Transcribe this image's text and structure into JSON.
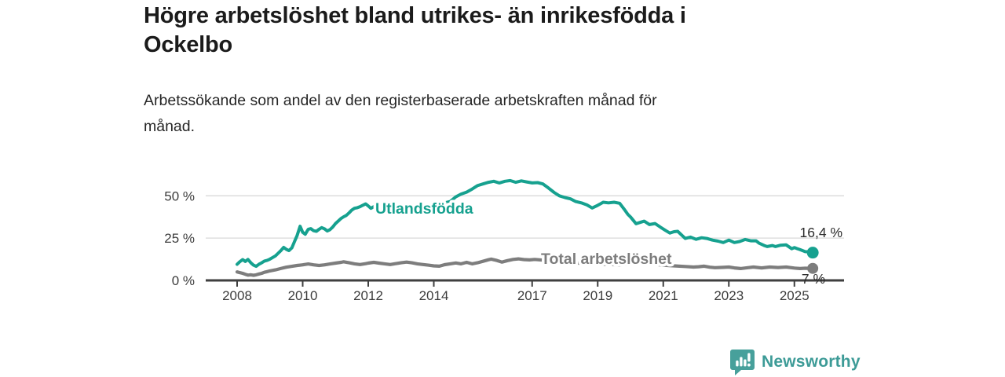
{
  "header": {
    "title_lines": [
      "Högre arbetslöshet bland utrikes- än inrikesfödda i",
      "Ockelbo"
    ],
    "subtitle_lines": [
      "Arbetssökande som andel av den registerbaserade arbetskraften månad för",
      "månad."
    ]
  },
  "chart_data": {
    "type": "line",
    "title": "Högre arbetslöshet bland utrikes- än inrikesfödda i Ockelbo",
    "subtitle": "Arbetssökande som andel av den registerbaserade arbetskraften månad för månad.",
    "unit": "%",
    "grid": true,
    "x_ticks": [
      2008,
      2010,
      2012,
      2014,
      2017,
      2019,
      2021,
      2023,
      2025
    ],
    "y_ticks": [
      {
        "value": 0,
        "label": "0 %"
      },
      {
        "value": 25,
        "label": "25 %"
      },
      {
        "value": 50,
        "label": "50 %"
      }
    ],
    "x_range": [
      2008,
      2025.6
    ],
    "y_range": [
      0,
      62
    ],
    "axis_color": "#3f3f3f",
    "grid_color": "#d9d9d9",
    "series": [
      {
        "name": "Utlandsfödda",
        "color": "#16a18f",
        "end_label": "16,4 %",
        "end_value": 16.4,
        "points": [
          [
            2008.0,
            9.5
          ],
          [
            2008.08,
            11
          ],
          [
            2008.17,
            12.3
          ],
          [
            2008.25,
            11.2
          ],
          [
            2008.33,
            12.4
          ],
          [
            2008.42,
            10.4
          ],
          [
            2008.5,
            9
          ],
          [
            2008.58,
            8.3
          ],
          [
            2008.67,
            9.6
          ],
          [
            2008.75,
            10.4
          ],
          [
            2008.83,
            11.4
          ],
          [
            2008.92,
            11.9
          ],
          [
            2009.0,
            12.6
          ],
          [
            2009.17,
            14.5
          ],
          [
            2009.25,
            16
          ],
          [
            2009.33,
            17.5
          ],
          [
            2009.42,
            19.5
          ],
          [
            2009.5,
            18.4
          ],
          [
            2009.58,
            17.6
          ],
          [
            2009.67,
            19.2
          ],
          [
            2009.75,
            23
          ],
          [
            2009.83,
            26.5
          ],
          [
            2009.92,
            32
          ],
          [
            2010.0,
            28.4
          ],
          [
            2010.08,
            27.3
          ],
          [
            2010.17,
            30.2
          ],
          [
            2010.25,
            30.6
          ],
          [
            2010.33,
            29.4
          ],
          [
            2010.42,
            29
          ],
          [
            2010.5,
            30.2
          ],
          [
            2010.58,
            31.2
          ],
          [
            2010.67,
            30.4
          ],
          [
            2010.75,
            29.2
          ],
          [
            2010.83,
            30
          ],
          [
            2010.92,
            31.6
          ],
          [
            2011.0,
            33.6
          ],
          [
            2011.08,
            35
          ],
          [
            2011.17,
            36.6
          ],
          [
            2011.25,
            37.6
          ],
          [
            2011.33,
            38.4
          ],
          [
            2011.42,
            40
          ],
          [
            2011.5,
            41.6
          ],
          [
            2011.58,
            42.6
          ],
          [
            2011.67,
            43
          ],
          [
            2011.75,
            43.6
          ],
          [
            2011.83,
            44.4
          ],
          [
            2011.92,
            45.2
          ],
          [
            2012.0,
            44
          ],
          [
            2012.08,
            42.6
          ],
          [
            2012.17,
            43.6
          ],
          [
            2012.33,
            44.2
          ],
          [
            2012.5,
            43.6
          ],
          [
            2012.75,
            44
          ],
          [
            2013.0,
            43.5
          ],
          [
            2013.25,
            44
          ],
          [
            2013.5,
            44.4
          ],
          [
            2013.75,
            44
          ],
          [
            2014.0,
            44.6
          ],
          [
            2014.25,
            45.4
          ],
          [
            2014.5,
            46.6
          ],
          [
            2014.67,
            49.4
          ],
          [
            2014.83,
            51
          ],
          [
            2015.0,
            52.2
          ],
          [
            2015.17,
            54
          ],
          [
            2015.33,
            56
          ],
          [
            2015.5,
            57
          ],
          [
            2015.67,
            58
          ],
          [
            2015.83,
            58.6
          ],
          [
            2016.0,
            57.6
          ],
          [
            2016.17,
            58.6
          ],
          [
            2016.33,
            59
          ],
          [
            2016.5,
            58
          ],
          [
            2016.67,
            58.8
          ],
          [
            2016.83,
            58.2
          ],
          [
            2017.0,
            57.6
          ],
          [
            2017.17,
            57.8
          ],
          [
            2017.33,
            57
          ],
          [
            2017.5,
            54.6
          ],
          [
            2017.67,
            52
          ],
          [
            2017.83,
            50
          ],
          [
            2018.0,
            49
          ],
          [
            2018.17,
            48.2
          ],
          [
            2018.33,
            46.6
          ],
          [
            2018.5,
            45.8
          ],
          [
            2018.67,
            44.6
          ],
          [
            2018.83,
            42.8
          ],
          [
            2019.0,
            44.4
          ],
          [
            2019.17,
            46.2
          ],
          [
            2019.33,
            45.8
          ],
          [
            2019.5,
            46.2
          ],
          [
            2019.67,
            45.6
          ],
          [
            2019.83,
            41.5
          ],
          [
            2019.92,
            39
          ],
          [
            2020.0,
            37.5
          ],
          [
            2020.17,
            33.5
          ],
          [
            2020.33,
            34.5
          ],
          [
            2020.42,
            35
          ],
          [
            2020.58,
            33
          ],
          [
            2020.75,
            33.6
          ],
          [
            2020.92,
            31.4
          ],
          [
            2021.08,
            29.4
          ],
          [
            2021.2,
            28
          ],
          [
            2021.33,
            28.8
          ],
          [
            2021.44,
            29
          ],
          [
            2021.58,
            26.4
          ],
          [
            2021.67,
            24.8
          ],
          [
            2021.83,
            25.6
          ],
          [
            2022.0,
            24.3
          ],
          [
            2022.17,
            25.2
          ],
          [
            2022.33,
            24.8
          ],
          [
            2022.5,
            23.8
          ],
          [
            2022.67,
            23.2
          ],
          [
            2022.83,
            22.4
          ],
          [
            2023.0,
            23.8
          ],
          [
            2023.17,
            22.4
          ],
          [
            2023.33,
            23
          ],
          [
            2023.5,
            24.2
          ],
          [
            2023.67,
            23.4
          ],
          [
            2023.83,
            23.4
          ],
          [
            2023.92,
            22
          ],
          [
            2024.08,
            20.6
          ],
          [
            2024.17,
            20
          ],
          [
            2024.33,
            20.6
          ],
          [
            2024.42,
            20
          ],
          [
            2024.58,
            20.8
          ],
          [
            2024.75,
            21
          ],
          [
            2024.92,
            18.7
          ],
          [
            2025.0,
            19.4
          ],
          [
            2025.08,
            18.8
          ],
          [
            2025.17,
            18.2
          ],
          [
            2025.33,
            17
          ],
          [
            2025.42,
            16.9
          ],
          [
            2025.56,
            16.4
          ]
        ]
      },
      {
        "name": "Total arbetslöshet",
        "color": "#7d7d7d",
        "end_label": "7 %",
        "end_value": 7,
        "points": [
          [
            2008.0,
            5
          ],
          [
            2008.08,
            4.6
          ],
          [
            2008.17,
            4.2
          ],
          [
            2008.25,
            3.6
          ],
          [
            2008.33,
            3.1
          ],
          [
            2008.42,
            3.3
          ],
          [
            2008.5,
            3
          ],
          [
            2008.58,
            3.3
          ],
          [
            2008.67,
            3.8
          ],
          [
            2008.75,
            4.2
          ],
          [
            2008.83,
            4.8
          ],
          [
            2008.92,
            5.2
          ],
          [
            2009.0,
            5.6
          ],
          [
            2009.17,
            6.2
          ],
          [
            2009.33,
            7
          ],
          [
            2009.5,
            7.8
          ],
          [
            2009.67,
            8.3
          ],
          [
            2009.83,
            8.8
          ],
          [
            2010.0,
            9.2
          ],
          [
            2010.17,
            9.7
          ],
          [
            2010.33,
            9.2
          ],
          [
            2010.5,
            8.8
          ],
          [
            2010.67,
            9.2
          ],
          [
            2010.83,
            9.7
          ],
          [
            2011.0,
            10.2
          ],
          [
            2011.17,
            10.7
          ],
          [
            2011.25,
            11
          ],
          [
            2011.42,
            10.4
          ],
          [
            2011.58,
            9.8
          ],
          [
            2011.75,
            9.4
          ],
          [
            2011.92,
            9.9
          ],
          [
            2012.0,
            10.2
          ],
          [
            2012.17,
            10.7
          ],
          [
            2012.33,
            10.2
          ],
          [
            2012.5,
            9.8
          ],
          [
            2012.67,
            9.4
          ],
          [
            2012.83,
            9.9
          ],
          [
            2013.0,
            10.4
          ],
          [
            2013.17,
            10.8
          ],
          [
            2013.33,
            10.4
          ],
          [
            2013.5,
            9.8
          ],
          [
            2013.67,
            9.4
          ],
          [
            2013.83,
            9
          ],
          [
            2014.0,
            8.6
          ],
          [
            2014.17,
            8.4
          ],
          [
            2014.33,
            9.3
          ],
          [
            2014.5,
            9.8
          ],
          [
            2014.67,
            10.3
          ],
          [
            2014.83,
            9.8
          ],
          [
            2015.0,
            10.7
          ],
          [
            2015.17,
            9.8
          ],
          [
            2015.33,
            10.4
          ],
          [
            2015.5,
            11.3
          ],
          [
            2015.67,
            12.2
          ],
          [
            2015.75,
            12.6
          ],
          [
            2015.92,
            11.8
          ],
          [
            2016.08,
            10.8
          ],
          [
            2016.25,
            11.7
          ],
          [
            2016.42,
            12.4
          ],
          [
            2016.58,
            12.7
          ],
          [
            2016.75,
            12.3
          ],
          [
            2016.92,
            12.1
          ],
          [
            2017.08,
            12.4
          ],
          [
            2017.33,
            12
          ],
          [
            2017.67,
            11.4
          ],
          [
            2018.0,
            10.8
          ],
          [
            2018.33,
            10.3
          ],
          [
            2018.67,
            9.9
          ],
          [
            2019.0,
            9.6
          ],
          [
            2019.33,
            9.4
          ],
          [
            2019.67,
            9.2
          ],
          [
            2020.0,
            9.7
          ],
          [
            2020.25,
            10.1
          ],
          [
            2020.5,
            9.8
          ],
          [
            2020.75,
            9.5
          ],
          [
            2021.0,
            9
          ],
          [
            2021.33,
            8.6
          ],
          [
            2021.67,
            8.2
          ],
          [
            2021.92,
            7.9
          ],
          [
            2022.08,
            8.1
          ],
          [
            2022.25,
            8.4
          ],
          [
            2022.42,
            7.8
          ],
          [
            2022.58,
            7.5
          ],
          [
            2022.83,
            7.7
          ],
          [
            2023.0,
            7.9
          ],
          [
            2023.17,
            7.4
          ],
          [
            2023.36,
            7
          ],
          [
            2023.58,
            7.5
          ],
          [
            2023.75,
            7.9
          ],
          [
            2024.0,
            7.4
          ],
          [
            2024.25,
            7.9
          ],
          [
            2024.5,
            7.6
          ],
          [
            2024.75,
            7.9
          ],
          [
            2025.0,
            7.3
          ],
          [
            2025.17,
            7
          ],
          [
            2025.33,
            7.2
          ],
          [
            2025.56,
            7.1
          ]
        ]
      }
    ]
  },
  "footer": {
    "brand": "Newsworthy",
    "brand_color": "#3d9b97",
    "logo_icon": "bar-chart-speech-bubble-icon",
    "logo_color": "#47a09b"
  }
}
